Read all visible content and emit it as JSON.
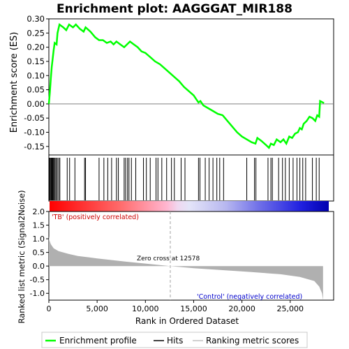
{
  "chart_data": {
    "type": "line",
    "title": "Enrichment plot: AAGGGAT_MIR188",
    "top_panel": {
      "ylabel": "Enrichment score (ES)",
      "ylim": [
        -0.18,
        0.3
      ],
      "yticks": [
        -0.15,
        -0.1,
        -0.05,
        0.0,
        0.05,
        0.1,
        0.15,
        0.2,
        0.25,
        0.3
      ],
      "ytick_labels": [
        "-0.15",
        "-0.10",
        "-0.05",
        "0.00",
        "0.05",
        "0.10",
        "0.15",
        "0.20",
        "0.25",
        "0.30"
      ],
      "series_name": "Enrichment profile",
      "color": "#00ff00",
      "points": [
        [
          0,
          0.0
        ],
        [
          100,
          0.04
        ],
        [
          200,
          0.09
        ],
        [
          300,
          0.13
        ],
        [
          400,
          0.16
        ],
        [
          500,
          0.19
        ],
        [
          600,
          0.215
        ],
        [
          800,
          0.21
        ],
        [
          900,
          0.25
        ],
        [
          1000,
          0.265
        ],
        [
          1100,
          0.28
        ],
        [
          1500,
          0.27
        ],
        [
          1800,
          0.26
        ],
        [
          2100,
          0.28
        ],
        [
          2500,
          0.27
        ],
        [
          2800,
          0.28
        ],
        [
          3200,
          0.265
        ],
        [
          3600,
          0.255
        ],
        [
          3800,
          0.27
        ],
        [
          4300,
          0.255
        ],
        [
          4800,
          0.235
        ],
        [
          5200,
          0.225
        ],
        [
          5600,
          0.225
        ],
        [
          6000,
          0.215
        ],
        [
          6400,
          0.22
        ],
        [
          6700,
          0.21
        ],
        [
          7000,
          0.22
        ],
        [
          7400,
          0.21
        ],
        [
          7800,
          0.2
        ],
        [
          8100,
          0.21
        ],
        [
          8400,
          0.22
        ],
        [
          8800,
          0.21
        ],
        [
          9200,
          0.2
        ],
        [
          9600,
          0.185
        ],
        [
          10000,
          0.18
        ],
        [
          10500,
          0.165
        ],
        [
          11000,
          0.15
        ],
        [
          11500,
          0.14
        ],
        [
          12000,
          0.125
        ],
        [
          12500,
          0.11
        ],
        [
          13000,
          0.095
        ],
        [
          13500,
          0.08
        ],
        [
          14000,
          0.06
        ],
        [
          14500,
          0.045
        ],
        [
          15000,
          0.03
        ],
        [
          15300,
          0.015
        ],
        [
          15500,
          0.005
        ],
        [
          15700,
          0.01
        ],
        [
          16000,
          -0.005
        ],
        [
          16500,
          -0.015
        ],
        [
          17000,
          -0.025
        ],
        [
          17500,
          -0.035
        ],
        [
          18000,
          -0.04
        ],
        [
          18500,
          -0.06
        ],
        [
          19000,
          -0.08
        ],
        [
          19500,
          -0.1
        ],
        [
          20000,
          -0.115
        ],
        [
          20500,
          -0.125
        ],
        [
          21000,
          -0.135
        ],
        [
          21400,
          -0.14
        ],
        [
          21600,
          -0.12
        ],
        [
          22000,
          -0.13
        ],
        [
          22500,
          -0.145
        ],
        [
          22800,
          -0.155
        ],
        [
          23000,
          -0.14
        ],
        [
          23300,
          -0.145
        ],
        [
          23600,
          -0.125
        ],
        [
          24000,
          -0.135
        ],
        [
          24300,
          -0.125
        ],
        [
          24600,
          -0.14
        ],
        [
          24900,
          -0.115
        ],
        [
          25200,
          -0.12
        ],
        [
          25500,
          -0.105
        ],
        [
          25800,
          -0.1
        ],
        [
          26000,
          -0.085
        ],
        [
          26200,
          -0.09
        ],
        [
          26400,
          -0.07
        ],
        [
          26700,
          -0.06
        ],
        [
          27000,
          -0.045
        ],
        [
          27300,
          -0.05
        ],
        [
          27600,
          -0.06
        ],
        [
          27800,
          -0.04
        ],
        [
          28000,
          -0.045
        ],
        [
          28100,
          0.01
        ],
        [
          28500,
          0.003
        ]
      ],
      "hit_positions": [
        40,
        120,
        200,
        260,
        330,
        400,
        480,
        560,
        650,
        760,
        880,
        1020,
        1140,
        1900,
        2150,
        2700,
        3700,
        3800,
        5200,
        5700,
        6100,
        6500,
        7000,
        7200,
        7800,
        7950,
        8150,
        8300,
        8550,
        9000,
        9800,
        10100,
        10500,
        11100,
        11300,
        11700,
        12200,
        12700,
        13000,
        13700,
        14100,
        15500,
        15650,
        16200,
        16600,
        17000,
        17400,
        17700,
        18100,
        20500,
        21300,
        21450,
        22700,
        23000,
        23150,
        23800,
        24200,
        24500,
        24900,
        25300,
        25700,
        26000,
        26300,
        26600,
        27300,
        27700,
        28000
      ]
    },
    "bottom_panel": {
      "ylabel": "Ranked list metric (Signal2Noise)",
      "ylim": [
        -1.25,
        2.0
      ],
      "yticks": [
        -1.0,
        -0.5,
        0.0,
        0.5,
        1.0,
        1.5,
        2.0
      ],
      "ytick_labels": [
        "-1.0",
        "-0.5",
        "0.0",
        "0.5",
        "1.0",
        "1.5",
        "2.0"
      ],
      "xlabel": "Rank in Ordered Dataset",
      "xlim": [
        0,
        29500
      ],
      "xticks": [
        0,
        5000,
        10000,
        15000,
        20000,
        25000
      ],
      "xtick_labels": [
        "0",
        "5,000",
        "10,000",
        "15,000",
        "20,000",
        "25,000"
      ],
      "metric_points": [
        [
          0,
          1.1
        ],
        [
          50,
          0.95
        ],
        [
          200,
          0.8
        ],
        [
          500,
          0.65
        ],
        [
          1000,
          0.55
        ],
        [
          2000,
          0.45
        ],
        [
          3000,
          0.37
        ],
        [
          5000,
          0.28
        ],
        [
          8000,
          0.16
        ],
        [
          10000,
          0.09
        ],
        [
          12578,
          0.0
        ],
        [
          15000,
          -0.08
        ],
        [
          18000,
          -0.15
        ],
        [
          21000,
          -0.22
        ],
        [
          24000,
          -0.3
        ],
        [
          26000,
          -0.4
        ],
        [
          27500,
          -0.55
        ],
        [
          28000,
          -0.75
        ],
        [
          28300,
          -1.0
        ],
        [
          28400,
          -1.25
        ]
      ],
      "zero_cross_label": "Zero cross at 12578",
      "zero_cross_x": 12578,
      "positive_label": "'TB' (positively correlated)",
      "negative_label": "'Control' (negatively correlated)"
    },
    "legend": {
      "placement": "bottom",
      "items": [
        {
          "label": "Enrichment profile",
          "color": "#00ff00"
        },
        {
          "label": "Hits",
          "color": "#000000"
        },
        {
          "label": "Ranking metric scores",
          "color": "#c0c0c0"
        }
      ]
    },
    "colors": {
      "profile": "#00ff00",
      "positive_text": "#cc0000",
      "negative_text": "#0000cc",
      "metric_fill": "#b0b0b0",
      "zero_line": "#a0a0a0"
    }
  }
}
